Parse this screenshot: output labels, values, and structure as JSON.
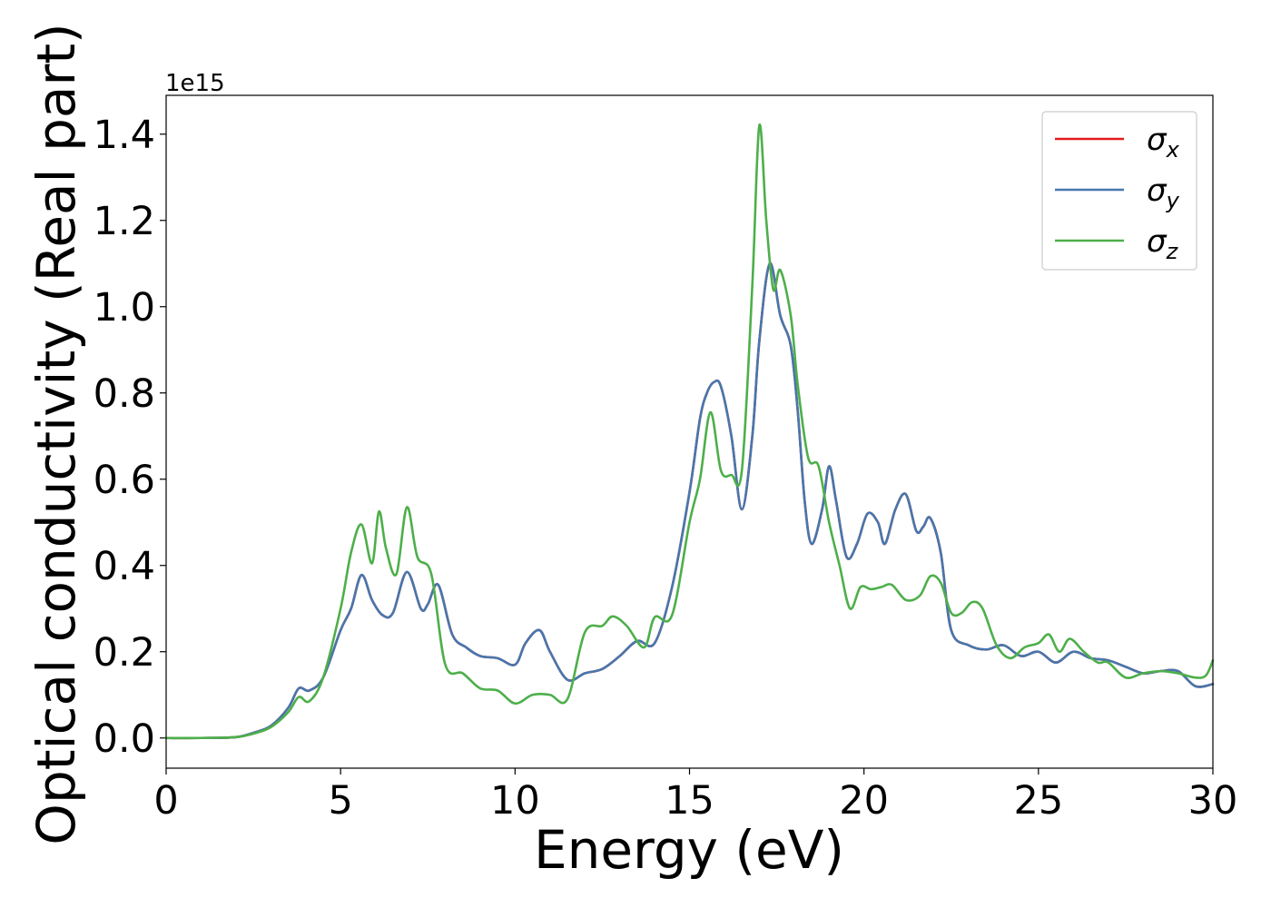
{
  "chart_data": {
    "type": "line",
    "xlabel": "Energy (eV)",
    "ylabel": "Optical conductivity (Real part)",
    "y_offset_text": "1e15",
    "y_multiplier": 1000000000000000.0,
    "xlim": [
      0,
      30
    ],
    "ylim": [
      -0.07,
      1.49
    ],
    "xticks": [
      0,
      5,
      10,
      15,
      20,
      25,
      30
    ],
    "xtick_labels": [
      "0",
      "5",
      "10",
      "15",
      "20",
      "25",
      "30"
    ],
    "yticks": [
      0.0,
      0.2,
      0.4,
      0.6,
      0.8,
      1.0,
      1.2,
      1.4
    ],
    "ytick_labels": [
      "0.0",
      "0.2",
      "0.4",
      "0.6",
      "0.8",
      "1.0",
      "1.2",
      "1.4"
    ],
    "grid": false,
    "legend_position": "top-right",
    "series": [
      {
        "name": "σx",
        "label_base": "σ",
        "label_sub": "x",
        "color": "#e41a1c",
        "x": [
          0,
          1,
          2,
          2.5,
          3,
          3.5,
          3.8,
          4.1,
          4.5,
          5,
          5.3,
          5.6,
          5.9,
          6.2,
          6.5,
          6.9,
          7.3,
          7.5,
          7.8,
          8.2,
          8.6,
          9,
          9.5,
          10,
          10.3,
          10.7,
          11,
          11.5,
          12,
          12.5,
          13,
          13.5,
          14,
          14.5,
          15,
          15.3,
          15.5,
          15.7,
          15.9,
          16.2,
          16.5,
          16.8,
          17,
          17.3,
          17.6,
          17.9,
          18.1,
          18.3,
          18.5,
          18.8,
          19,
          19.2,
          19.5,
          19.8,
          20.1,
          20.4,
          20.6,
          20.9,
          21.2,
          21.5,
          21.7,
          21.9,
          22.2,
          22.5,
          23,
          23.5,
          24,
          24.5,
          25,
          25.5,
          26,
          26.5,
          27,
          27.5,
          28,
          28.5,
          29,
          29.5,
          30
        ],
        "values": [
          0.0,
          0.0,
          0.002,
          0.012,
          0.028,
          0.07,
          0.115,
          0.11,
          0.14,
          0.25,
          0.3,
          0.378,
          0.32,
          0.285,
          0.29,
          0.385,
          0.3,
          0.31,
          0.355,
          0.24,
          0.21,
          0.19,
          0.185,
          0.17,
          0.22,
          0.25,
          0.2,
          0.135,
          0.15,
          0.16,
          0.19,
          0.225,
          0.22,
          0.35,
          0.57,
          0.74,
          0.8,
          0.825,
          0.815,
          0.7,
          0.53,
          0.7,
          0.92,
          1.1,
          0.98,
          0.91,
          0.76,
          0.55,
          0.45,
          0.53,
          0.63,
          0.55,
          0.42,
          0.45,
          0.52,
          0.5,
          0.45,
          0.53,
          0.565,
          0.48,
          0.49,
          0.51,
          0.43,
          0.25,
          0.215,
          0.205,
          0.215,
          0.19,
          0.2,
          0.175,
          0.2,
          0.185,
          0.18,
          0.165,
          0.15,
          0.155,
          0.155,
          0.12,
          0.125
        ]
      },
      {
        "name": "σy",
        "label_base": "σ",
        "label_sub": "y",
        "color": "#4677ad",
        "x": [
          0,
          1,
          2,
          2.5,
          3,
          3.5,
          3.8,
          4.1,
          4.5,
          5,
          5.3,
          5.6,
          5.9,
          6.2,
          6.5,
          6.9,
          7.3,
          7.5,
          7.8,
          8.2,
          8.6,
          9,
          9.5,
          10,
          10.3,
          10.7,
          11,
          11.5,
          12,
          12.5,
          13,
          13.5,
          14,
          14.5,
          15,
          15.3,
          15.5,
          15.7,
          15.9,
          16.2,
          16.5,
          16.8,
          17,
          17.3,
          17.6,
          17.9,
          18.1,
          18.3,
          18.5,
          18.8,
          19,
          19.2,
          19.5,
          19.8,
          20.1,
          20.4,
          20.6,
          20.9,
          21.2,
          21.5,
          21.7,
          21.9,
          22.2,
          22.5,
          23,
          23.5,
          24,
          24.5,
          25,
          25.5,
          26,
          26.5,
          27,
          27.5,
          28,
          28.5,
          29,
          29.5,
          30
        ],
        "values": [
          0.0,
          0.0,
          0.002,
          0.012,
          0.028,
          0.07,
          0.115,
          0.11,
          0.14,
          0.25,
          0.3,
          0.378,
          0.32,
          0.285,
          0.29,
          0.385,
          0.3,
          0.31,
          0.355,
          0.24,
          0.21,
          0.19,
          0.185,
          0.17,
          0.22,
          0.25,
          0.2,
          0.135,
          0.15,
          0.16,
          0.19,
          0.225,
          0.22,
          0.35,
          0.57,
          0.74,
          0.8,
          0.825,
          0.815,
          0.7,
          0.53,
          0.7,
          0.92,
          1.1,
          0.98,
          0.91,
          0.76,
          0.55,
          0.45,
          0.53,
          0.63,
          0.55,
          0.42,
          0.45,
          0.52,
          0.5,
          0.45,
          0.53,
          0.565,
          0.48,
          0.49,
          0.51,
          0.43,
          0.25,
          0.215,
          0.205,
          0.215,
          0.19,
          0.2,
          0.175,
          0.2,
          0.185,
          0.18,
          0.165,
          0.15,
          0.155,
          0.155,
          0.12,
          0.125
        ]
      },
      {
        "name": "σz",
        "label_base": "σ",
        "label_sub": "z",
        "color": "#4daf4a",
        "x": [
          0,
          1,
          2,
          2.5,
          3,
          3.5,
          3.8,
          4.1,
          4.5,
          5,
          5.3,
          5.6,
          5.9,
          6.1,
          6.3,
          6.6,
          6.9,
          7.2,
          7.6,
          8,
          8.5,
          9,
          9.5,
          10,
          10.5,
          11,
          11.5,
          12,
          12.5,
          12.8,
          13.2,
          13.7,
          14,
          14.5,
          15,
          15.3,
          15.6,
          15.9,
          16.2,
          16.5,
          16.8,
          17,
          17.2,
          17.4,
          17.6,
          17.9,
          18.1,
          18.4,
          18.7,
          19,
          19.3,
          19.6,
          19.9,
          20.2,
          20.5,
          20.8,
          21.2,
          21.6,
          21.9,
          22.2,
          22.5,
          22.8,
          23.1,
          23.4,
          23.8,
          24.2,
          24.6,
          25,
          25.3,
          25.6,
          25.9,
          26.3,
          26.7,
          27,
          27.5,
          28,
          28.5,
          29,
          29.5,
          29.8,
          30
        ],
        "values": [
          0.0,
          0.0,
          0.002,
          0.01,
          0.025,
          0.06,
          0.095,
          0.085,
          0.14,
          0.3,
          0.43,
          0.495,
          0.405,
          0.525,
          0.44,
          0.38,
          0.535,
          0.42,
          0.38,
          0.17,
          0.15,
          0.115,
          0.11,
          0.08,
          0.1,
          0.1,
          0.09,
          0.245,
          0.26,
          0.282,
          0.26,
          0.21,
          0.28,
          0.285,
          0.5,
          0.6,
          0.755,
          0.62,
          0.61,
          0.62,
          1.05,
          1.42,
          1.2,
          1.04,
          1.085,
          0.98,
          0.82,
          0.65,
          0.63,
          0.5,
          0.4,
          0.3,
          0.35,
          0.345,
          0.35,
          0.355,
          0.32,
          0.33,
          0.375,
          0.36,
          0.29,
          0.29,
          0.315,
          0.3,
          0.215,
          0.185,
          0.21,
          0.22,
          0.24,
          0.2,
          0.23,
          0.2,
          0.175,
          0.175,
          0.14,
          0.15,
          0.155,
          0.15,
          0.14,
          0.145,
          0.18
        ]
      }
    ]
  }
}
